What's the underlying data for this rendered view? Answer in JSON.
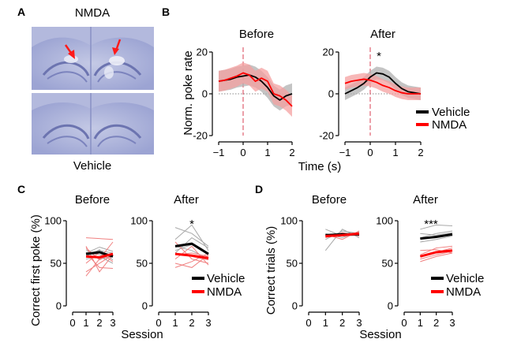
{
  "panels": {
    "A": {
      "letter": "A",
      "top_label": "NMDA",
      "bottom_label": "Vehicle"
    },
    "B": {
      "letter": "B",
      "titles": [
        "Before",
        "After"
      ],
      "ylabel": "Norm. poke rate",
      "xlabel": "Time (s)",
      "star": "*",
      "legend": [
        "Vehicle",
        "NMDA"
      ]
    },
    "C": {
      "letter": "C",
      "titles": [
        "Before",
        "After"
      ],
      "ylabel": "Correct first poke (%)",
      "xlabel": "Session",
      "star": "*",
      "legend": [
        "Vehicle",
        "NMDA"
      ]
    },
    "D": {
      "letter": "D",
      "titles": [
        "Before",
        "After"
      ],
      "ylabel": "Correct trials (%)",
      "xlabel": "Session",
      "star": "***",
      "legend": [
        "Vehicle",
        "NMDA"
      ]
    }
  },
  "colors": {
    "vehicle": "#000000",
    "nmda": "#ff0000",
    "vehicle_shade": "#b0b0b0",
    "nmda_shade": "#f4a0a0",
    "thin_vehicle": "#a8a8a8",
    "thin_nmda": "#f08080",
    "brain_stain": "#8f97c9",
    "arrow": "#ff1a1a"
  },
  "chart_data": [
    {
      "panel": "B-Before",
      "type": "line",
      "x": [
        -1,
        -0.75,
        -0.5,
        -0.25,
        0,
        0.25,
        0.5,
        0.75,
        1,
        1.25,
        1.5,
        1.75,
        2
      ],
      "series": [
        {
          "name": "Vehicle",
          "values": [
            6,
            6.5,
            7,
            8,
            8.5,
            9,
            8,
            6,
            3,
            -1,
            -3,
            -1,
            0
          ],
          "sem": [
            5,
            5,
            5,
            5,
            5,
            5,
            5,
            5,
            5,
            5,
            5,
            5,
            5
          ]
        },
        {
          "name": "NMDA",
          "values": [
            6,
            6.5,
            7.5,
            8.5,
            10,
            9,
            6,
            7.5,
            6,
            0,
            -1,
            -3,
            -6
          ],
          "sem": [
            5,
            5,
            5,
            5,
            5,
            5,
            5,
            5,
            5,
            5,
            5,
            5,
            5
          ]
        }
      ],
      "xlim": [
        -1,
        2
      ],
      "ylim": [
        -20,
        20
      ],
      "xticks": [
        "-1",
        "0",
        "1",
        "2"
      ],
      "yticks": [
        "20",
        "0",
        "-20"
      ],
      "markers": {
        "event_x": 0,
        "zero_line_y": 0
      }
    },
    {
      "panel": "B-After",
      "type": "line",
      "x": [
        -1,
        -0.75,
        -0.5,
        -0.25,
        0,
        0.25,
        0.5,
        0.75,
        1,
        1.25,
        1.5,
        1.75,
        2
      ],
      "series": [
        {
          "name": "Vehicle",
          "values": [
            0,
            1.5,
            3,
            5,
            8,
            10,
            9.5,
            8,
            5,
            2.5,
            1,
            0.5,
            0
          ],
          "sem": [
            3,
            3,
            3,
            3,
            3,
            3,
            3,
            3,
            3,
            3,
            3,
            3,
            3
          ]
        },
        {
          "name": "NMDA",
          "values": [
            5,
            6,
            6.5,
            7,
            6.5,
            5.5,
            4,
            3,
            1.5,
            0.5,
            0,
            0,
            0
          ],
          "sem": [
            3,
            3,
            3,
            3,
            3,
            3,
            3,
            3,
            3,
            3,
            3,
            3,
            3
          ]
        }
      ],
      "xlim": [
        -1,
        2
      ],
      "ylim": [
        -20,
        20
      ],
      "xticks": [
        "-1",
        "0",
        "1",
        "2"
      ],
      "yticks": [
        "20",
        "0",
        "-20"
      ],
      "markers": {
        "event_x": 0,
        "zero_line_y": 0
      }
    },
    {
      "panel": "C-Before",
      "type": "line",
      "x": [
        1,
        2,
        3
      ],
      "series": [
        {
          "name": "Vehicle",
          "values": [
            61,
            63,
            58
          ]
        },
        {
          "name": "NMDA",
          "values": [
            58,
            57,
            61
          ]
        }
      ],
      "individual": {
        "Vehicle": [
          [
            55,
            58,
            50
          ],
          [
            62,
            69,
            64
          ],
          [
            60,
            65,
            62
          ],
          [
            66,
            55,
            58
          ],
          [
            58,
            66,
            54
          ],
          [
            63,
            60,
            60
          ]
        ],
        "NMDA": [
          [
            80,
            79,
            78
          ],
          [
            68,
            54,
            62
          ],
          [
            70,
            40,
            60
          ],
          [
            50,
            63,
            52
          ],
          [
            40,
            50,
            60
          ],
          [
            35,
            55,
            75
          ],
          [
            62,
            45,
            44
          ]
        ]
      },
      "xlim": [
        0,
        3
      ],
      "ylim": [
        0,
        100
      ],
      "xticks": [
        "0",
        "1",
        "2",
        "3"
      ],
      "yticks": [
        "100",
        "50",
        "0"
      ]
    },
    {
      "panel": "C-After",
      "type": "line",
      "x": [
        1,
        2,
        3
      ],
      "series": [
        {
          "name": "Vehicle",
          "values": [
            70,
            73,
            61
          ]
        },
        {
          "name": "NMDA",
          "values": [
            61,
            59,
            56
          ]
        }
      ],
      "individual": {
        "Vehicle": [
          [
            92,
            85,
            70
          ],
          [
            78,
            95,
            65
          ],
          [
            62,
            80,
            68
          ],
          [
            70,
            65,
            55
          ],
          [
            65,
            72,
            60
          ]
        ],
        "NMDA": [
          [
            75,
            55,
            50
          ],
          [
            60,
            62,
            58
          ],
          [
            50,
            45,
            60
          ],
          [
            55,
            70,
            48
          ],
          [
            62,
            58,
            54
          ],
          [
            45,
            52,
            62
          ]
        ]
      },
      "star": "*",
      "xlim": [
        0,
        3
      ],
      "ylim": [
        0,
        100
      ],
      "xticks": [
        "0",
        "1",
        "2",
        "3"
      ],
      "yticks": [
        "100",
        "50",
        "0"
      ]
    },
    {
      "panel": "D-Before",
      "type": "line",
      "x": [
        1,
        2,
        3
      ],
      "series": [
        {
          "name": "Vehicle",
          "values": [
            83,
            84,
            84
          ]
        },
        {
          "name": "NMDA",
          "values": [
            82,
            83,
            85
          ]
        }
      ],
      "individual": {
        "Vehicle": [
          [
            65,
            90,
            80
          ],
          [
            85,
            80,
            87
          ],
          [
            78,
            88,
            85
          ],
          [
            90,
            82,
            83
          ]
        ],
        "NMDA": [
          [
            80,
            86,
            82
          ],
          [
            84,
            78,
            88
          ],
          [
            82,
            85,
            84
          ]
        ]
      },
      "xlim": [
        0,
        3
      ],
      "ylim": [
        0,
        100
      ],
      "xticks": [
        "0",
        "1",
        "2",
        "3"
      ],
      "yticks": [
        "100",
        "50",
        "0"
      ]
    },
    {
      "panel": "D-After",
      "type": "line",
      "x": [
        1,
        2,
        3
      ],
      "series": [
        {
          "name": "Vehicle",
          "values": [
            79,
            81,
            84
          ]
        },
        {
          "name": "NMDA",
          "values": [
            58,
            63,
            65
          ]
        }
      ],
      "individual": {
        "Vehicle": [
          [
            90,
            95,
            94
          ],
          [
            80,
            85,
            88
          ],
          [
            75,
            78,
            82
          ],
          [
            85,
            83,
            86
          ]
        ],
        "NMDA": [
          [
            52,
            58,
            62
          ],
          [
            60,
            68,
            70
          ],
          [
            55,
            60,
            64
          ],
          [
            65,
            66,
            62
          ],
          [
            58,
            63,
            68
          ]
        ]
      },
      "star": "***",
      "xlim": [
        0,
        3
      ],
      "ylim": [
        0,
        100
      ],
      "xticks": [
        "0",
        "1",
        "2",
        "3"
      ],
      "yticks": [
        "100",
        "50",
        "0"
      ]
    }
  ]
}
